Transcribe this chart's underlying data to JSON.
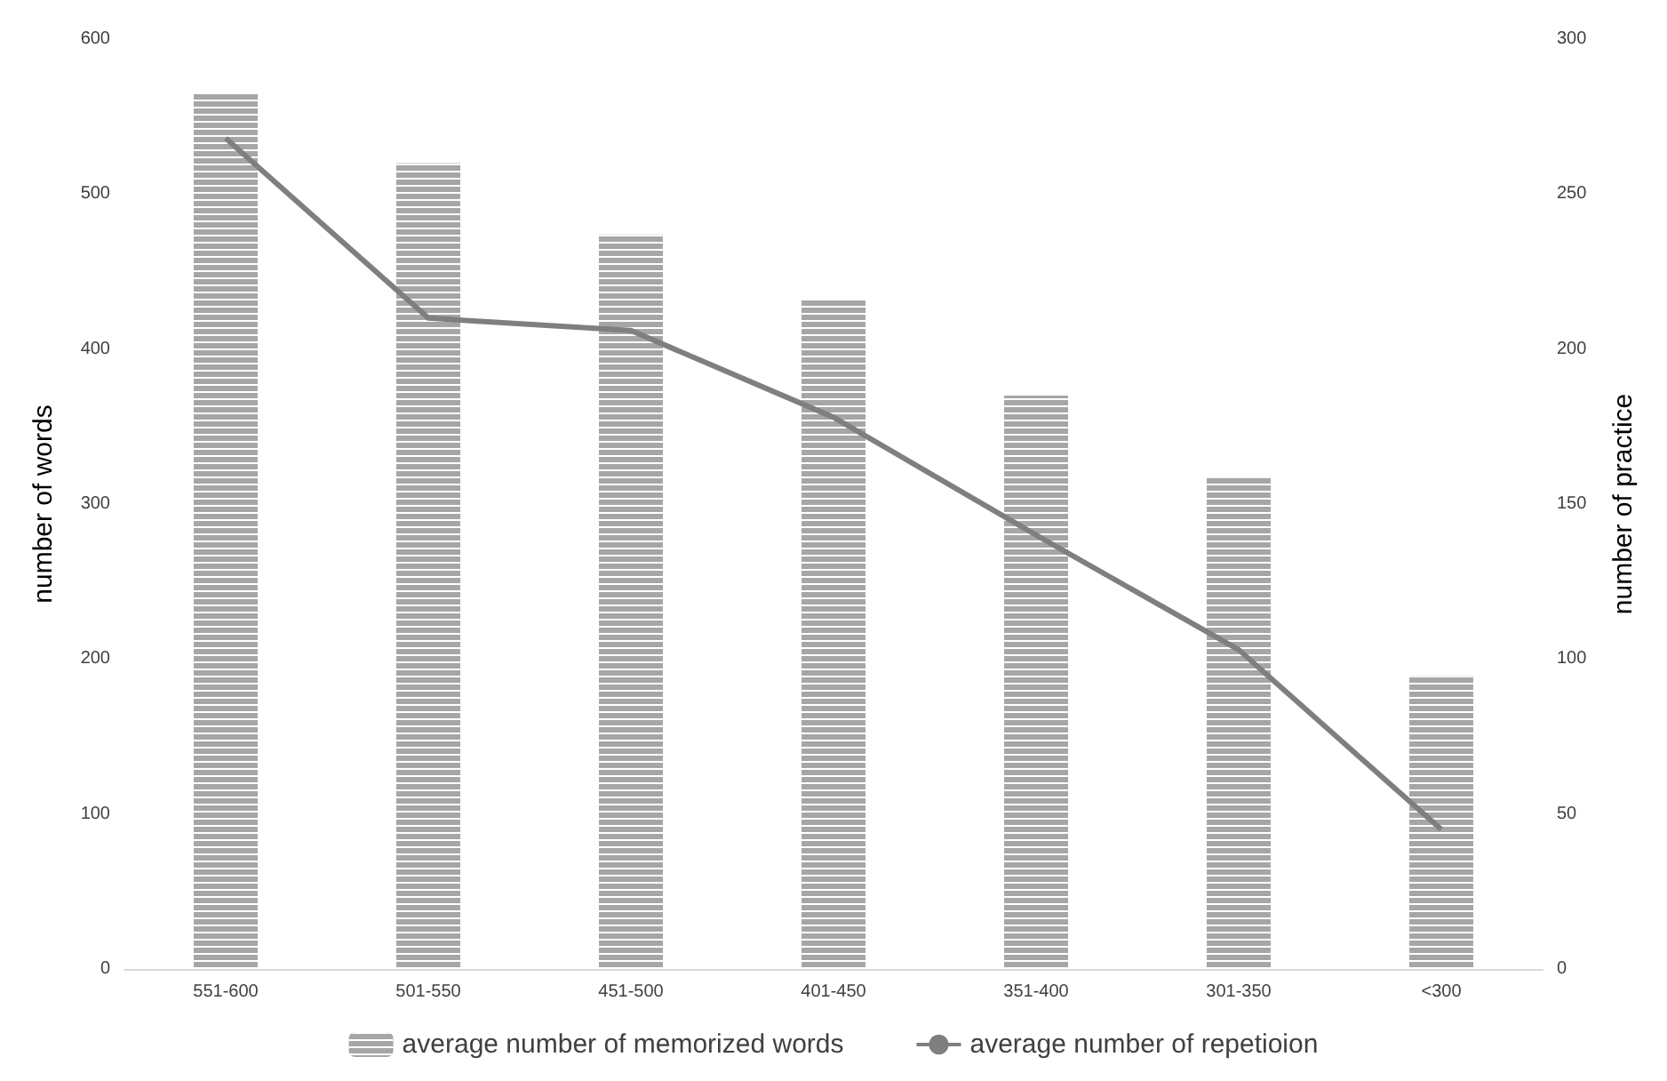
{
  "chart_data": {
    "type": "bar",
    "categories": [
      "551-600",
      "501-550",
      "451-500",
      "401-450",
      "351-400",
      "301-350",
      "<300"
    ],
    "ylabel": "number of words",
    "y2label": "number of practice",
    "ylim": [
      0,
      600
    ],
    "yticks": [
      0,
      100,
      200,
      300,
      400,
      500,
      600
    ],
    "y2lim": [
      0,
      300
    ],
    "y2ticks": [
      0,
      50,
      100,
      150,
      200,
      250,
      300
    ],
    "series": [
      {
        "name": "average number of memorized words",
        "color": "#a6a6a6",
        "values": [
          565,
          520,
          474,
          432,
          370,
          317,
          189
        ]
      },
      {
        "name": "average number of repetioion",
        "type": "line",
        "axis": "y2",
        "color": "#7f7f7f",
        "values": [
          268,
          210,
          206,
          178,
          140,
          103,
          45
        ]
      }
    ],
    "grid": false,
    "legend": "bottom",
    "marker": "none",
    "line_style": "solid"
  }
}
